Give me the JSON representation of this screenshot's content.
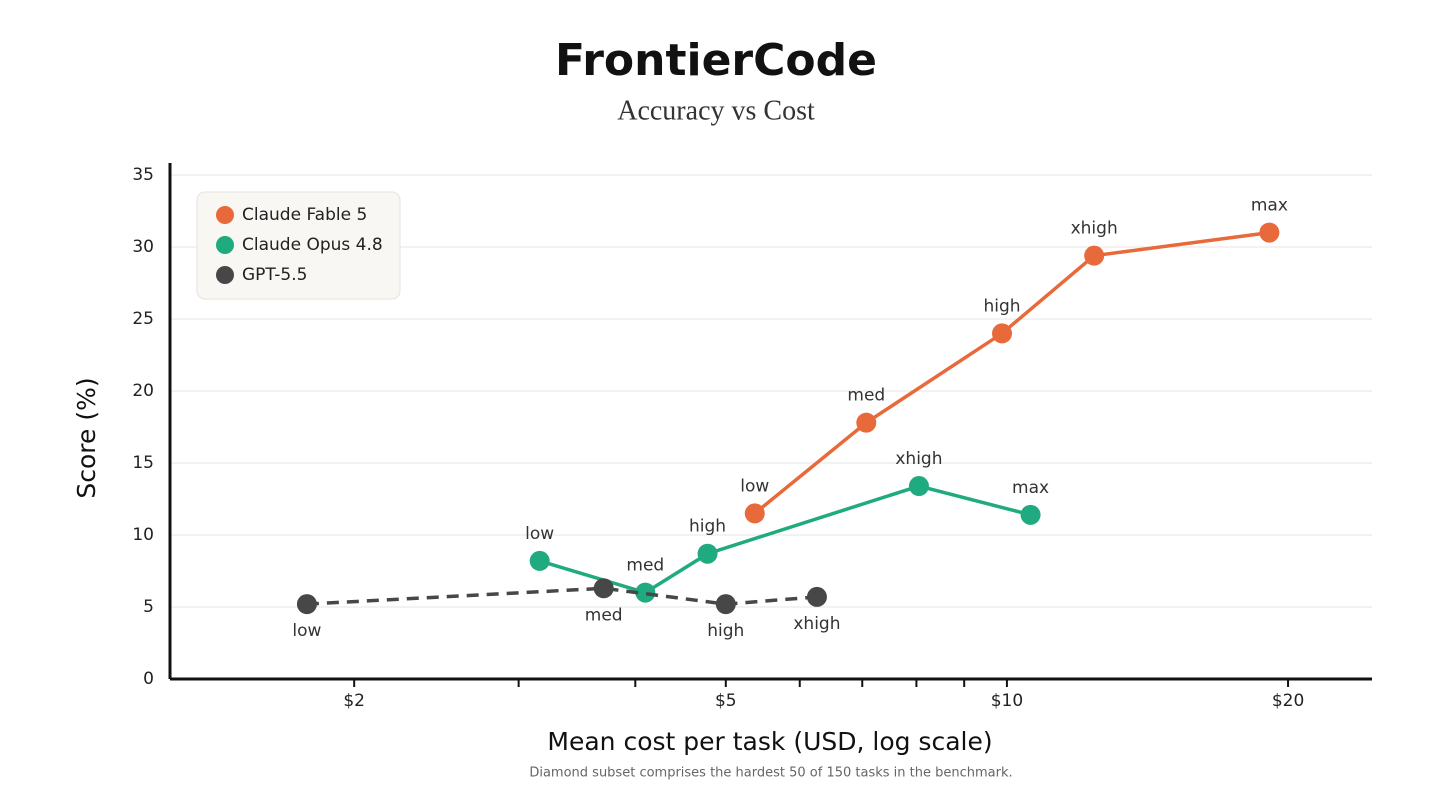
{
  "chart_data": {
    "type": "line",
    "title": "FrontierCode",
    "subtitle": "Accuracy vs Cost",
    "x_label": "Mean cost per task (USD, log scale)",
    "y_label": "Score (%)",
    "footnote": "Diamond subset comprises the hardest 50 of 150 tasks in the benchmark.",
    "x_scale": "log",
    "xlim": [
      1.27,
      24.6
    ],
    "xticks": [
      {
        "value": 2,
        "label": "$2"
      },
      {
        "value": 5,
        "label": "$5"
      },
      {
        "value": 10,
        "label": "$10"
      },
      {
        "value": 20,
        "label": "$20"
      }
    ],
    "xminorticks": [
      3,
      4,
      6,
      7,
      8,
      9
    ],
    "ylim": [
      0,
      35
    ],
    "yticks": [
      0,
      5,
      10,
      15,
      20,
      25,
      30,
      35
    ],
    "grid": true,
    "legend": "upper left",
    "series": [
      {
        "name": "Claude Fable 5",
        "color": "#e8693a",
        "dash": false,
        "label_position": "above",
        "x": [
          5.37,
          7.07,
          9.88,
          12.4,
          19.1
        ],
        "values": [
          11.5,
          17.8,
          24.0,
          29.4,
          31.0
        ],
        "point_labels": [
          "low",
          "med",
          "high",
          "xhigh",
          "max"
        ]
      },
      {
        "name": "Claude Opus 4.8",
        "color": "#1faa80",
        "dash": false,
        "label_position": "above",
        "x": [
          3.16,
          4.1,
          4.78,
          8.05,
          10.6
        ],
        "values": [
          8.2,
          6.0,
          8.7,
          13.4,
          11.4
        ],
        "point_labels": [
          "low",
          "med",
          "high",
          "xhigh",
          "max"
        ]
      },
      {
        "name": "GPT-5.5",
        "color": "#474747",
        "dash": true,
        "label_position": "below",
        "x": [
          1.78,
          3.7,
          5.0,
          6.26
        ],
        "values": [
          5.2,
          6.3,
          5.2,
          5.7
        ],
        "point_labels": [
          "low",
          "med",
          "high",
          "xhigh"
        ]
      }
    ]
  }
}
